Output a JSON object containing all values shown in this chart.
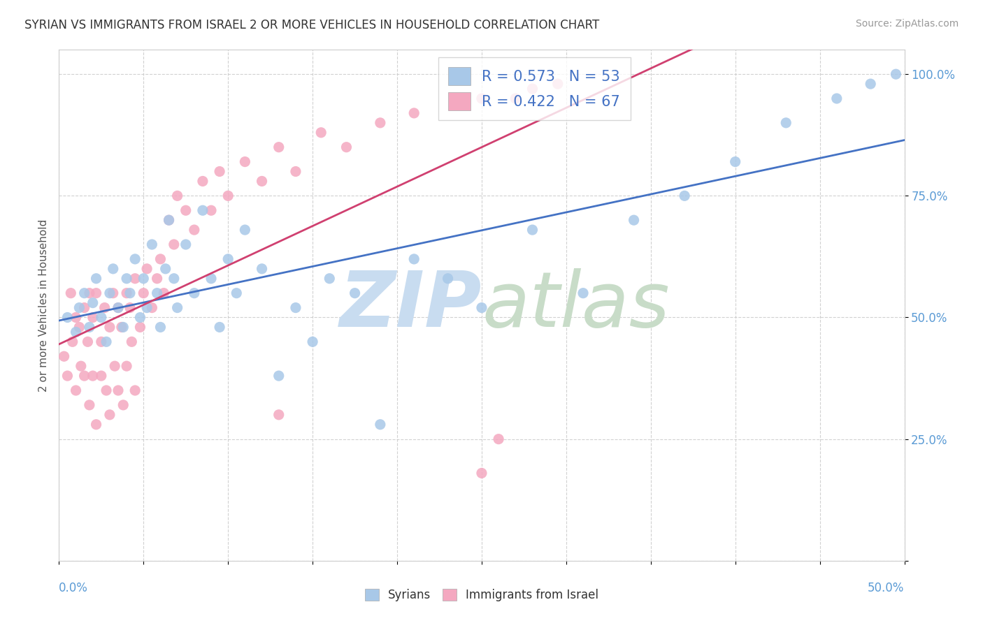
{
  "title": "SYRIAN VS IMMIGRANTS FROM ISRAEL 2 OR MORE VEHICLES IN HOUSEHOLD CORRELATION CHART",
  "source": "Source: ZipAtlas.com",
  "ylabel": "2 or more Vehicles in Household",
  "y_ticks": [
    0.0,
    0.25,
    0.5,
    0.75,
    1.0
  ],
  "y_tick_labels": [
    "",
    "25.0%",
    "50.0%",
    "75.0%",
    "100.0%"
  ],
  "xlim": [
    0.0,
    0.5
  ],
  "ylim": [
    0.0,
    1.05
  ],
  "blue_color": "#A8C8E8",
  "pink_color": "#F4A8C0",
  "blue_line_color": "#4472C4",
  "pink_line_color": "#D04070",
  "blue_R": 0.573,
  "blue_N": 53,
  "pink_R": 0.422,
  "pink_N": 67,
  "grid_color": "#cccccc",
  "background_color": "#ffffff",
  "syrians_x": [
    0.005,
    0.01,
    0.012,
    0.015,
    0.018,
    0.02,
    0.022,
    0.025,
    0.028,
    0.03,
    0.032,
    0.035,
    0.038,
    0.04,
    0.042,
    0.045,
    0.048,
    0.05,
    0.052,
    0.055,
    0.058,
    0.06,
    0.063,
    0.065,
    0.068,
    0.07,
    0.075,
    0.08,
    0.085,
    0.09,
    0.095,
    0.1,
    0.105,
    0.11,
    0.12,
    0.13,
    0.14,
    0.15,
    0.16,
    0.175,
    0.19,
    0.21,
    0.23,
    0.25,
    0.28,
    0.31,
    0.34,
    0.37,
    0.4,
    0.43,
    0.46,
    0.48,
    0.495
  ],
  "syrians_y": [
    0.5,
    0.47,
    0.52,
    0.55,
    0.48,
    0.53,
    0.58,
    0.5,
    0.45,
    0.55,
    0.6,
    0.52,
    0.48,
    0.58,
    0.55,
    0.62,
    0.5,
    0.58,
    0.52,
    0.65,
    0.55,
    0.48,
    0.6,
    0.7,
    0.58,
    0.52,
    0.65,
    0.55,
    0.72,
    0.58,
    0.48,
    0.62,
    0.55,
    0.68,
    0.6,
    0.38,
    0.52,
    0.45,
    0.58,
    0.55,
    0.28,
    0.62,
    0.58,
    0.52,
    0.68,
    0.55,
    0.7,
    0.75,
    0.82,
    0.9,
    0.95,
    0.98,
    1.0
  ],
  "israel_x": [
    0.003,
    0.005,
    0.007,
    0.008,
    0.01,
    0.01,
    0.012,
    0.013,
    0.015,
    0.015,
    0.017,
    0.018,
    0.018,
    0.02,
    0.02,
    0.022,
    0.022,
    0.025,
    0.025,
    0.027,
    0.028,
    0.03,
    0.03,
    0.032,
    0.033,
    0.035,
    0.035,
    0.037,
    0.038,
    0.04,
    0.04,
    0.042,
    0.043,
    0.045,
    0.045,
    0.048,
    0.05,
    0.052,
    0.055,
    0.058,
    0.06,
    0.062,
    0.065,
    0.068,
    0.07,
    0.075,
    0.08,
    0.085,
    0.09,
    0.095,
    0.1,
    0.11,
    0.12,
    0.13,
    0.14,
    0.155,
    0.17,
    0.19,
    0.21,
    0.235,
    0.25,
    0.27,
    0.28,
    0.295,
    0.13,
    0.25,
    0.26
  ],
  "israel_y": [
    0.42,
    0.38,
    0.55,
    0.45,
    0.5,
    0.35,
    0.48,
    0.4,
    0.52,
    0.38,
    0.45,
    0.55,
    0.32,
    0.5,
    0.38,
    0.55,
    0.28,
    0.45,
    0.38,
    0.52,
    0.35,
    0.48,
    0.3,
    0.55,
    0.4,
    0.52,
    0.35,
    0.48,
    0.32,
    0.55,
    0.4,
    0.52,
    0.45,
    0.58,
    0.35,
    0.48,
    0.55,
    0.6,
    0.52,
    0.58,
    0.62,
    0.55,
    0.7,
    0.65,
    0.75,
    0.72,
    0.68,
    0.78,
    0.72,
    0.8,
    0.75,
    0.82,
    0.78,
    0.85,
    0.8,
    0.88,
    0.85,
    0.9,
    0.92,
    0.95,
    0.95,
    0.95,
    0.97,
    0.98,
    0.3,
    0.18,
    0.25
  ]
}
